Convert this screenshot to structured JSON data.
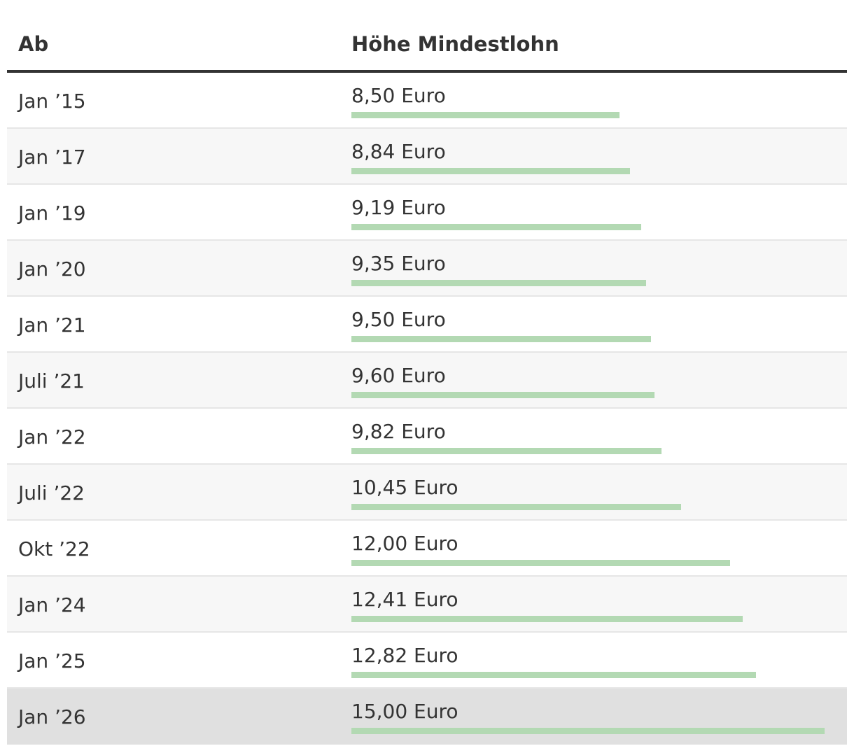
{
  "chart_data": {
    "type": "table",
    "columns": [
      "Ab",
      "Höhe Mindestlohn"
    ],
    "bar_color": "#b3d9b3",
    "highlight_color": "#e0e0e0",
    "rows": [
      {
        "date": "Jan ’15",
        "value": 8.5,
        "label": "8,50 Euro"
      },
      {
        "date": "Jan ’17",
        "value": 8.84,
        "label": "8,84 Euro"
      },
      {
        "date": "Jan ’19",
        "value": 9.19,
        "label": "9,19 Euro"
      },
      {
        "date": "Jan ’20",
        "value": 9.35,
        "label": "9,35 Euro"
      },
      {
        "date": "Jan ’21",
        "value": 9.5,
        "label": "9,50 Euro"
      },
      {
        "date": "Juli ’21",
        "value": 9.6,
        "label": "9,60 Euro"
      },
      {
        "date": "Jan ’22",
        "value": 9.82,
        "label": "9,82 Euro"
      },
      {
        "date": "Juli ’22",
        "value": 10.45,
        "label": "10,45 Euro"
      },
      {
        "date": "Okt ’22",
        "value": 12.0,
        "label": "12,00 Euro"
      },
      {
        "date": "Jan ’24",
        "value": 12.41,
        "label": "12,41 Euro"
      },
      {
        "date": "Jan ’25",
        "value": 12.82,
        "label": "12,82 Euro"
      },
      {
        "date": "Jan ’26",
        "value": 15.0,
        "label": "15,00 Euro",
        "highlighted": true
      }
    ]
  }
}
